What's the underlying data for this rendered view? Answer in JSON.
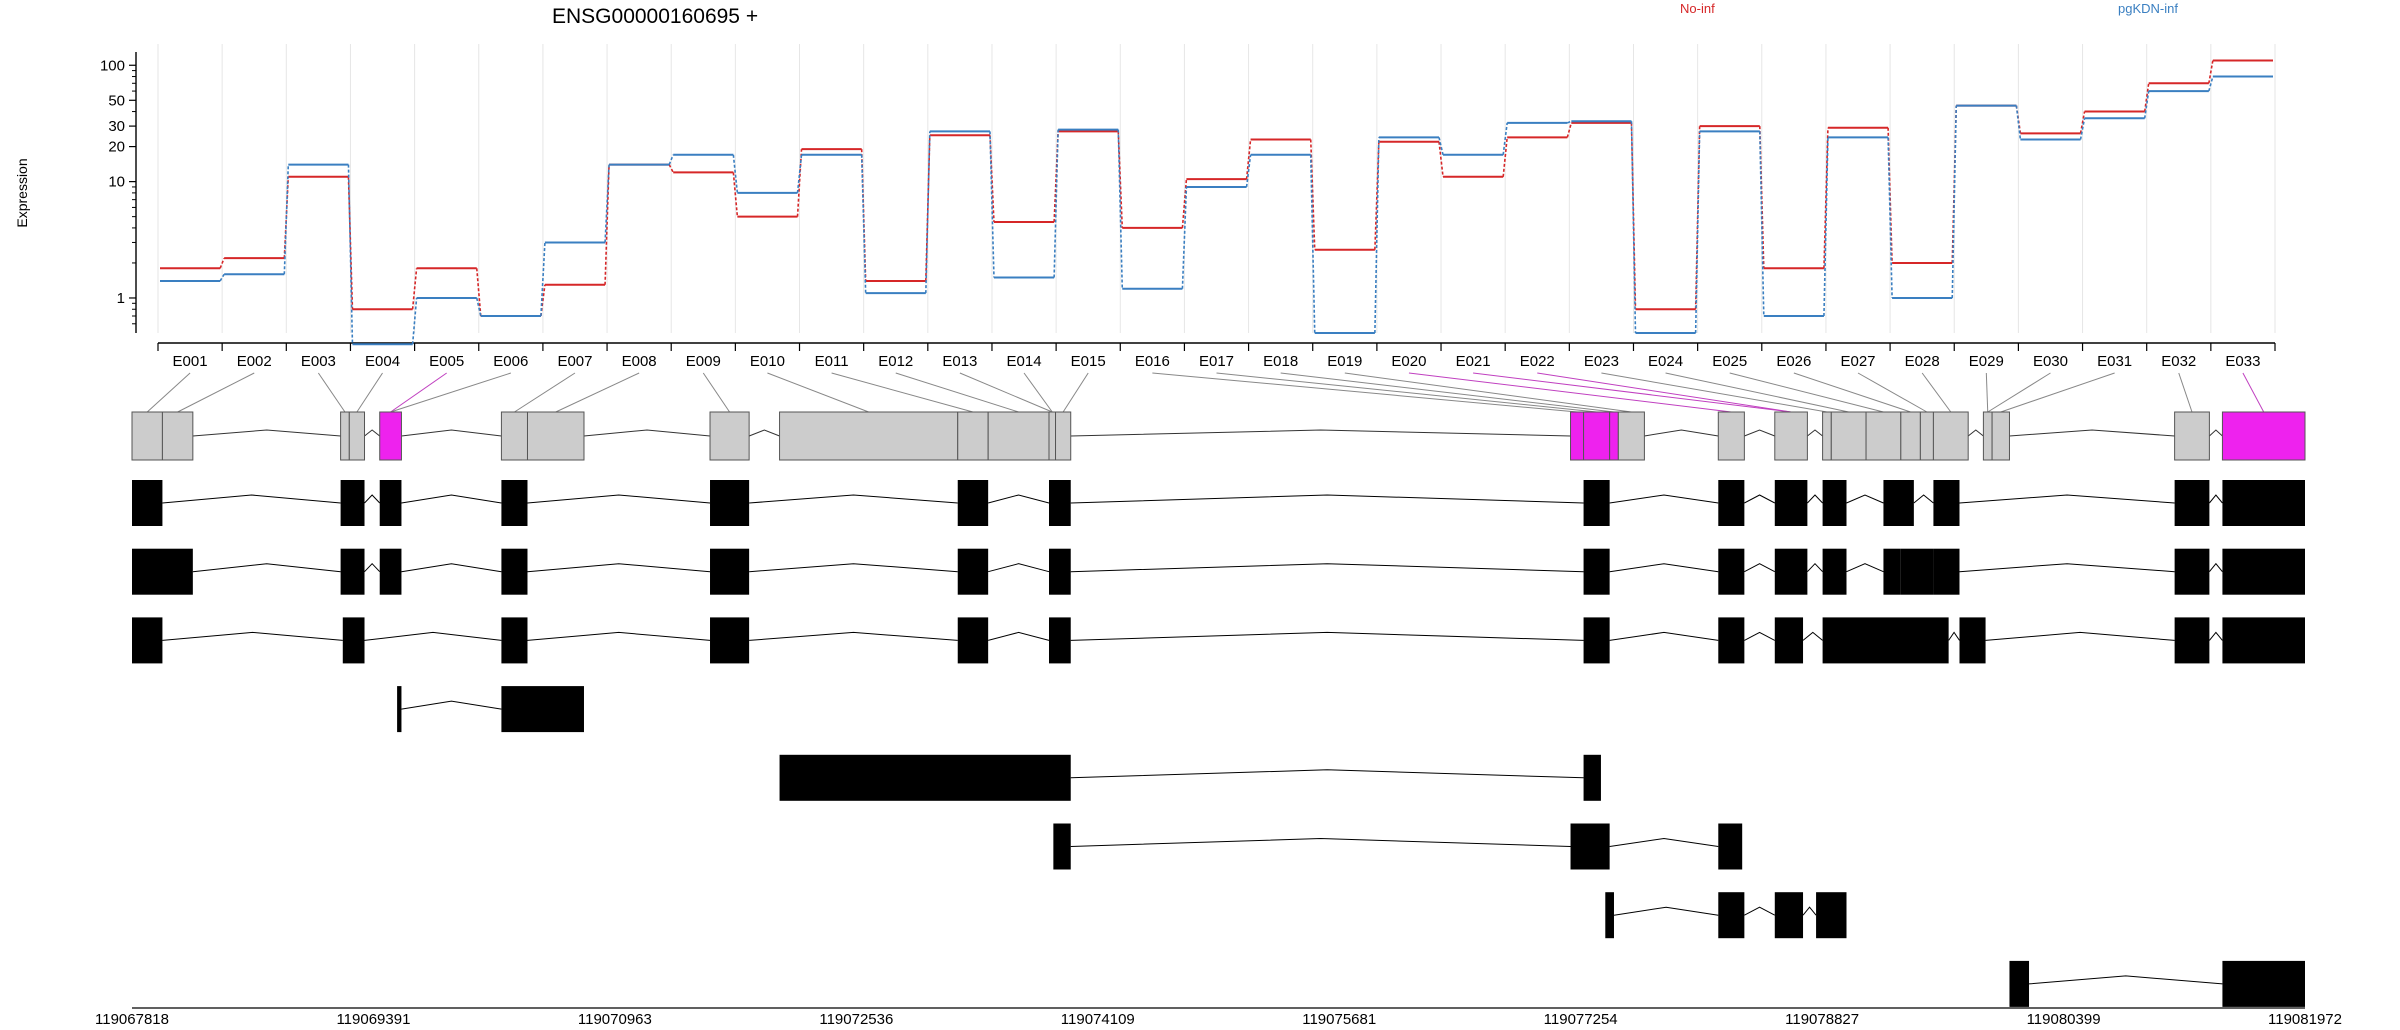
{
  "chart_data": {
    "type": "line",
    "title": "ENSG00000160695 +",
    "ylabel": "Expression",
    "y_scale": "log",
    "ylim": [
      0.5,
      130
    ],
    "y_ticks": [
      {
        "value": 1,
        "label": "1"
      },
      {
        "value": 10,
        "label": "10"
      },
      {
        "value": 20,
        "label": "20"
      },
      {
        "value": 30,
        "label": "30"
      },
      {
        "value": 50,
        "label": "50"
      },
      {
        "value": 100,
        "label": "100"
      }
    ],
    "legend_placement": "top",
    "colors": {
      "no_inf": "#d62728",
      "pgkdn_inf": "#3a7fc1",
      "significant": "#ee22ee",
      "exon_fill": "#cccccc",
      "transcript": "#000000",
      "grid": "#e6e6e6"
    },
    "categories": [
      "E001",
      "E002",
      "E003",
      "E004",
      "E005",
      "E006",
      "E007",
      "E008",
      "E009",
      "E010",
      "E011",
      "E012",
      "E013",
      "E014",
      "E015",
      "E016",
      "E017",
      "E018",
      "E019",
      "E020",
      "E021",
      "E022",
      "E023",
      "E024",
      "E025",
      "E026",
      "E027",
      "E028",
      "E029",
      "E030",
      "E031",
      "E032",
      "E033"
    ],
    "series": [
      {
        "name": "No-inf",
        "color": "#d62728",
        "values": [
          1.8,
          2.2,
          11,
          0.8,
          1.8,
          0.7,
          1.3,
          14,
          12,
          5,
          19,
          1.4,
          25,
          4.5,
          27,
          4,
          10.5,
          23,
          2.6,
          22,
          11,
          24,
          32,
          0.8,
          30,
          1.8,
          29,
          2,
          45,
          26,
          40,
          70,
          110
        ]
      },
      {
        "name": "pgKDN-inf",
        "color": "#3a7fc1",
        "values": [
          1.4,
          1.6,
          14,
          0.4,
          1.0,
          0.7,
          3,
          14,
          17,
          8,
          17,
          1.1,
          27,
          1.5,
          28,
          1.2,
          9,
          17,
          0.5,
          24,
          17,
          32,
          33,
          0.5,
          27,
          0.7,
          24,
          1,
          45,
          23,
          35,
          60,
          80
        ]
      }
    ],
    "significant_bins": [
      "E005",
      "E020",
      "E021",
      "E022",
      "E033"
    ],
    "genomic_axis": {
      "range": [
        119067818,
        119081972
      ],
      "tick_labels": [
        "119067818",
        "119069391",
        "119070963",
        "119072536",
        "119074109",
        "119075681",
        "119077254",
        "119078827",
        "119080399",
        "119081972"
      ]
    }
  }
}
